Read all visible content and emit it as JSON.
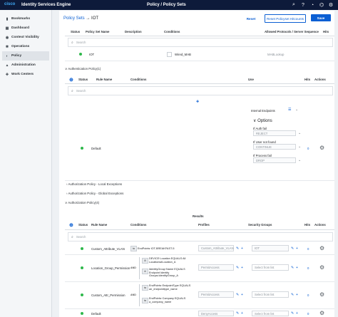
{
  "topbar": {
    "logo": "cisco",
    "app_title": "Identity Services Engine",
    "page_title": "Policy / Policy Sets",
    "icons": [
      "search-icon",
      "help-icon",
      "notifications-icon",
      "connector-icon",
      "settings-icon"
    ]
  },
  "sidebar": {
    "items": [
      {
        "label": "Bookmarks",
        "icon": "bookmark-icon"
      },
      {
        "label": "Dashboard",
        "icon": "dashboard-icon"
      },
      {
        "label": "Context Visibility",
        "icon": "visibility-icon"
      },
      {
        "label": "Operations",
        "icon": "operations-icon"
      },
      {
        "label": "Policy",
        "icon": "policy-icon"
      },
      {
        "label": "Administration",
        "icon": "admin-icon"
      },
      {
        "label": "Work Centers",
        "icon": "workcenter-icon"
      }
    ],
    "active": "Policy"
  },
  "header": {
    "crumb": "Policy Sets",
    "separator": "→",
    "current": "IOT",
    "reset": "Reset",
    "reset_hitcounts": "Reset Policyset Hitcounts",
    "save": "Save"
  },
  "policy_set_table": {
    "headers": [
      "Status",
      "Policy Set Name",
      "Description",
      "Conditions",
      "Allowed Protocols / Server Sequence",
      "Hits"
    ],
    "search_placeholder": "Search",
    "row": {
      "name": "IOT",
      "condition": "Wired_MAB",
      "protocol": "MABLookup"
    }
  },
  "authc": {
    "title": "Authentication Policy(1)",
    "headers": [
      "Status",
      "Rule Name",
      "Conditions",
      "Use",
      "Hits",
      "Actions"
    ],
    "search_placeholder": "Search",
    "row": {
      "name": "Default",
      "use": "Internal Endpoints",
      "options_label": "Options",
      "if_auth_fail_label": "If Auth fail",
      "if_auth_fail_value": "REJECT",
      "if_user_not_found_label": "If User not found",
      "if_user_not_found_value": "CONTINUE",
      "if_process_fail_label": "If Process fail",
      "if_process_fail_value": "DROP"
    }
  },
  "sections": {
    "local_exceptions": "Authorization Policy - Local Exceptions",
    "global_exceptions": "Authorization Policy - Global Exceptions",
    "authz_title": "Authorization Policy(4)"
  },
  "authz": {
    "results_label": "Results",
    "headers": [
      "Status",
      "Rule Name",
      "Conditions",
      "Profiles",
      "Security Groups",
      "Hits",
      "Actions"
    ],
    "search_placeholder": "Search",
    "rows": [
      {
        "name": "Custom_Attribute_VLAN",
        "cond_lines": [
          "EndPoints·IOT-BREAKFAST-5"
        ],
        "profile": "Custom_Attribute_VLAN",
        "sgt": "IOT"
      },
      {
        "name": "Location_Group_Permission",
        "cond_and": "AND",
        "cond_lines": [
          "DEVICE·Location EQUALS All Locations#Location_A",
          "IdentityGroup·Name EQUALS Endpoint Identity Groups:IdentityGroup_A"
        ],
        "profile": "PermitAccess",
        "sgt": "Select from list"
      },
      {
        "name": "Custom_Attr_Permission",
        "cond_and": "AND",
        "cond_lines": [
          "EndPoints·EndpointType EQUALS an_endpointtype_name",
          "EndPoints·Company EQUALS a_company_name"
        ],
        "profile": "PermitAccess",
        "sgt": "Select from list"
      },
      {
        "name": "Default",
        "cond_lines": [],
        "profile": "DenyAccess",
        "sgt": "Select from list"
      }
    ]
  },
  "colors": {
    "accent": "#0b5fd3",
    "topbar": "#0d1a3a",
    "status_ok": "#2eb84b"
  }
}
